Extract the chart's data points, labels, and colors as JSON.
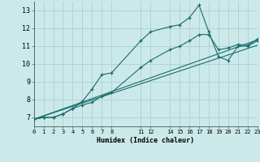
{
  "xlabel": "Humidex (Indice chaleur)",
  "bg_color": "#cce9e9",
  "grid_color": "#aad0d0",
  "line_color": "#1a6b6b",
  "xlim": [
    0,
    23
  ],
  "ylim": [
    6.5,
    13.5
  ],
  "xticks": [
    0,
    1,
    2,
    3,
    4,
    5,
    6,
    7,
    8,
    11,
    12,
    14,
    15,
    16,
    17,
    18,
    19,
    20,
    21,
    22,
    23
  ],
  "yticks": [
    7,
    8,
    9,
    10,
    11,
    12,
    13
  ],
  "series": [
    {
      "x": [
        0,
        1,
        2,
        3,
        4,
        5,
        6,
        7,
        8,
        11,
        12,
        14,
        15,
        16,
        17,
        18,
        19,
        20,
        21,
        22,
        23
      ],
      "y": [
        6.9,
        7.0,
        7.0,
        7.2,
        7.5,
        7.9,
        8.6,
        9.4,
        9.5,
        11.3,
        11.8,
        12.1,
        12.2,
        12.6,
        13.3,
        11.8,
        10.4,
        10.2,
        11.0,
        11.0,
        11.3
      ],
      "marker": true
    },
    {
      "x": [
        0,
        1,
        2,
        3,
        4,
        5,
        6,
        7,
        8,
        11,
        12,
        14,
        15,
        16,
        17,
        18,
        19,
        20,
        21,
        22,
        23
      ],
      "y": [
        6.9,
        7.0,
        7.0,
        7.2,
        7.5,
        7.7,
        7.85,
        8.2,
        8.4,
        9.8,
        10.2,
        10.8,
        11.0,
        11.3,
        11.65,
        11.65,
        10.8,
        10.9,
        11.1,
        11.05,
        11.4
      ],
      "marker": true
    },
    {
      "x": [
        0,
        23
      ],
      "y": [
        6.9,
        11.35
      ],
      "marker": false
    },
    {
      "x": [
        0,
        23
      ],
      "y": [
        6.9,
        11.05
      ],
      "marker": false
    }
  ]
}
